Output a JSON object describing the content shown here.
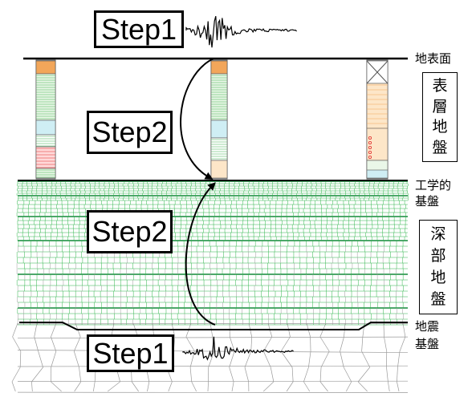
{
  "steps": {
    "top_step1": "Step1",
    "upper_step2": "Step2",
    "lower_step2": "Step2",
    "bottom_step1": "Step1"
  },
  "labels": {
    "ground_surface": "地表面",
    "engineering_bedrock": [
      "工学的",
      "基盤"
    ],
    "seismic_bedrock": [
      "地震",
      "基盤"
    ]
  },
  "vertical_labels": {
    "surface_ground": [
      "表",
      "層",
      "地",
      "盤"
    ],
    "deep_ground": [
      "深",
      "部",
      "地",
      "盤"
    ]
  },
  "colors": {
    "line": "#000000",
    "mesh_green": "#2fb44a",
    "mesh_dark_green": "#138a3a",
    "mesh_grey": "#9a9a9a",
    "column_green": "#3cb04a",
    "column_orange": "#f2a65a",
    "column_red": "#e02a2a",
    "column_cyan": "#5fc7d8"
  }
}
